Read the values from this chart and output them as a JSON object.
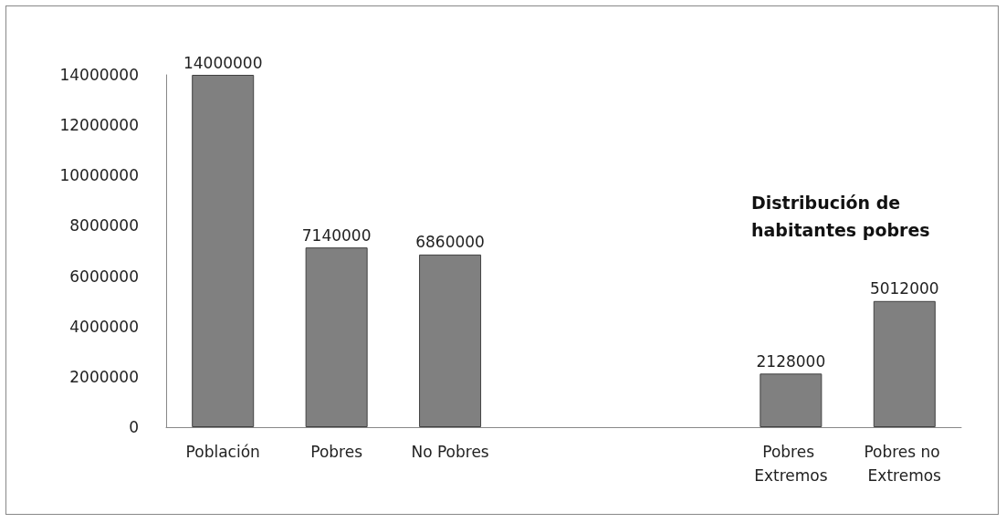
{
  "chart_data": {
    "type": "bar",
    "categories": [
      "Población",
      "Pobres",
      "No Pobres",
      null,
      null,
      "Pobres Extremos",
      "Pobres no Extremos"
    ],
    "values": [
      14000000,
      7140000,
      6860000,
      null,
      null,
      2128000,
      5012000
    ],
    "color": "#808080",
    "ylim": [
      0,
      14000000
    ],
    "yticks": [
      0,
      2000000,
      4000000,
      6000000,
      8000000,
      10000000,
      12000000,
      14000000
    ],
    "data_labels": true,
    "grid": false,
    "annotations": [
      "Distribución de habitantes pobres"
    ]
  }
}
